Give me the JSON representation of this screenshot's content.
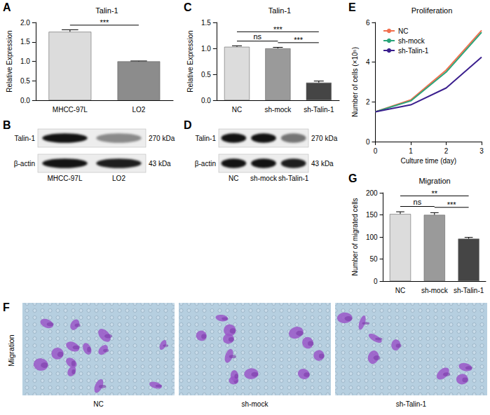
{
  "chart_data": [
    {
      "panel": "A",
      "type": "bar",
      "title": "Talin-1",
      "y_label": "Relative Expression",
      "categories": [
        "MHCC-97L",
        "LO2"
      ],
      "values": [
        1.76,
        1.0
      ],
      "errors": [
        0.05,
        0.01
      ],
      "colors": [
        "#dcdcdc",
        "#8c8c8c"
      ],
      "ylim": [
        0,
        2
      ],
      "yticks": [
        {
          "value": 0,
          "label": "0.0"
        },
        {
          "value": 0.5,
          "label": "0.5"
        },
        {
          "value": 1,
          "label": "1.0"
        },
        {
          "value": 1.5,
          "label": "1.5"
        },
        {
          "value": 2,
          "label": "2.0"
        }
      ],
      "grid": false,
      "annotations": [
        {
          "between": [
            "MHCC-97L",
            "LO2"
          ],
          "text": "***"
        }
      ]
    },
    {
      "panel": "C",
      "type": "bar",
      "title": "Talin-1",
      "y_label": "Relative Expression",
      "categories": [
        "NC",
        "sh-mock",
        "sh-Talin-1"
      ],
      "values": [
        1.03,
        1.0,
        0.34
      ],
      "errors": [
        0.02,
        0.02,
        0.03
      ],
      "colors": [
        "#dcdcdc",
        "#9a9a9a",
        "#454545"
      ],
      "ylim": [
        0,
        1.5
      ],
      "yticks": [
        {
          "value": 0,
          "label": "0.0"
        },
        {
          "value": 0.5,
          "label": "0.5"
        },
        {
          "value": 1,
          "label": "1.0"
        },
        {
          "value": 1.5,
          "label": "1.5"
        }
      ],
      "grid": false,
      "annotations": [
        {
          "between": [
            "NC",
            "sh-mock"
          ],
          "text": "ns"
        },
        {
          "between": [
            "sh-mock",
            "sh-Talin-1"
          ],
          "text": "***"
        },
        {
          "between": [
            "NC",
            "sh-Talin-1"
          ],
          "text": "***"
        }
      ]
    },
    {
      "panel": "E",
      "type": "line",
      "title": "Proliferation",
      "x_label": "Culture time (day)",
      "y_label": "Number of cells (×10⁵)",
      "x": [
        0,
        1,
        2,
        3
      ],
      "series": [
        {
          "name": "NC",
          "color": "#f2704f",
          "values": [
            1.5,
            2.1,
            3.6,
            5.6
          ]
        },
        {
          "name": "sh-mock",
          "color": "#2aa57a",
          "values": [
            1.5,
            2.05,
            3.5,
            5.5
          ]
        },
        {
          "name": "sh-Talin-1",
          "color": "#3b1f8e",
          "values": [
            1.5,
            1.85,
            2.7,
            4.25
          ]
        }
      ],
      "xlim": [
        0,
        3
      ],
      "xticks": [
        0,
        1,
        2,
        3
      ],
      "ylim": [
        0,
        6
      ],
      "yticks": [
        0,
        2,
        4,
        6
      ],
      "grid": false,
      "legend": "top-left",
      "marker": "none"
    },
    {
      "panel": "G",
      "type": "bar",
      "title": "Migration",
      "y_label": "Number of migrated cells",
      "categories": [
        "NC",
        "sh-mock",
        "sh-Talin-1"
      ],
      "values": [
        152,
        150,
        96
      ],
      "errors": [
        5,
        5,
        3
      ],
      "colors": [
        "#dcdcdc",
        "#9a9a9a",
        "#454545"
      ],
      "ylim": [
        0,
        200
      ],
      "yticks": [
        0,
        50,
        100,
        150,
        200
      ],
      "grid": false,
      "annotations": [
        {
          "between": [
            "NC",
            "sh-mock"
          ],
          "text": "ns"
        },
        {
          "between": [
            "sh-mock",
            "sh-Talin-1"
          ],
          "text": "***"
        },
        {
          "between": [
            "NC",
            "sh-Talin-1"
          ],
          "text": "**"
        }
      ]
    }
  ],
  "blots": [
    {
      "panel": "B",
      "lanes": [
        "MHCC-97L",
        "LO2"
      ],
      "rows": [
        {
          "label": "Talin-1",
          "size": "270 kDa",
          "intensity": [
            1.0,
            0.45
          ]
        },
        {
          "label": "β-actin",
          "size": "43 kDa",
          "intensity": [
            1.0,
            0.95
          ]
        }
      ]
    },
    {
      "panel": "D",
      "lanes": [
        "NC",
        "sh-mock",
        "sh-Talin-1"
      ],
      "rows": [
        {
          "label": "Talin-1",
          "size": "270 kDa",
          "intensity": [
            1.0,
            1.0,
            0.55
          ]
        },
        {
          "label": "β-actin",
          "size": "43 kDa",
          "intensity": [
            1.0,
            1.0,
            0.95
          ]
        }
      ]
    }
  ],
  "micrographs": {
    "panel": "F",
    "label": "Migration",
    "images": [
      {
        "label": "NC",
        "cells": 13
      },
      {
        "label": "sh-mock",
        "cells": 12
      },
      {
        "label": "sh-Talin-1",
        "cells": 8
      }
    ]
  }
}
